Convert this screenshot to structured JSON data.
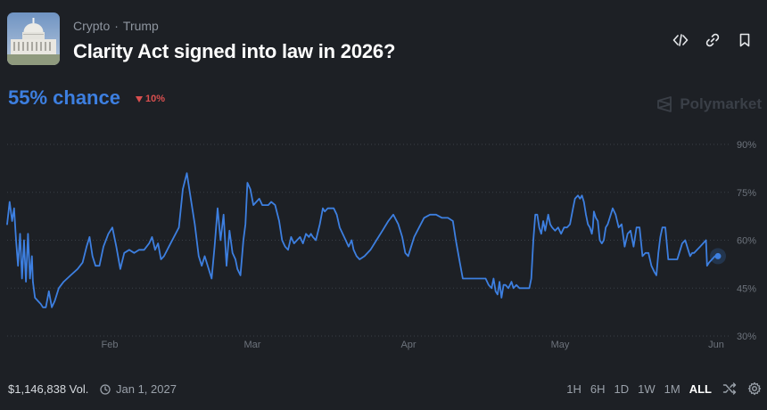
{
  "header": {
    "breadcrumbs": [
      "Crypto",
      "Trump"
    ],
    "separator": "·",
    "title": "Clarity Act signed into law in 2026?",
    "thumbnail_icon": "capitol-building-icon",
    "actions": [
      "embed-icon",
      "link-icon",
      "bookmark-icon"
    ]
  },
  "summary": {
    "chance": "55% chance",
    "delta": "10%",
    "delta_direction": "down",
    "watermark": "Polymarket"
  },
  "colors": {
    "background": "#1d2025",
    "line": "#3d7fe0",
    "delta": "#d94f4f",
    "grid": "#3a3f47",
    "axis_text": "#6d737c"
  },
  "footer": {
    "volume": "$1,146,838 Vol.",
    "end_date": "Jan 1, 2027",
    "ranges": [
      "1H",
      "6H",
      "1D",
      "1W",
      "1M",
      "ALL"
    ],
    "active_range": "ALL",
    "tools": [
      "shuffle-icon",
      "settings-icon"
    ]
  },
  "chart_data": {
    "type": "line",
    "x_ticks": [
      "Feb",
      "Mar",
      "Apr",
      "May",
      "Jun"
    ],
    "y_ticks": [
      "90%",
      "75%",
      "60%",
      "45%",
      "30%"
    ],
    "ylim": [
      30,
      90
    ],
    "grid": true,
    "series": [
      {
        "values": [
          [
            0,
            65
          ],
          [
            0.25,
            72
          ],
          [
            0.5,
            66
          ],
          [
            0.7,
            70
          ],
          [
            0.9,
            60
          ],
          [
            1.1,
            52
          ],
          [
            1.3,
            62
          ],
          [
            1.5,
            48
          ],
          [
            1.7,
            60
          ],
          [
            1.9,
            47
          ],
          [
            2.1,
            62
          ],
          [
            2.3,
            48
          ],
          [
            2.5,
            55
          ],
          [
            2.6,
            47
          ],
          [
            2.8,
            42
          ],
          [
            3.1,
            41
          ],
          [
            3.4,
            40
          ],
          [
            3.6,
            39
          ],
          [
            3.9,
            39
          ],
          [
            4.2,
            44
          ],
          [
            4.5,
            39
          ],
          [
            4.8,
            41
          ],
          [
            5.2,
            45
          ],
          [
            5.7,
            47
          ],
          [
            6.4,
            49
          ],
          [
            7.1,
            51
          ],
          [
            7.6,
            53
          ],
          [
            8.0,
            58
          ],
          [
            8.3,
            61
          ],
          [
            8.6,
            55
          ],
          [
            8.9,
            52
          ],
          [
            9.3,
            52
          ],
          [
            9.7,
            58
          ],
          [
            10.2,
            62
          ],
          [
            10.6,
            64
          ],
          [
            11.0,
            58
          ],
          [
            11.4,
            51
          ],
          [
            11.8,
            56
          ],
          [
            12.3,
            57
          ],
          [
            12.8,
            56
          ],
          [
            13.3,
            57
          ],
          [
            13.8,
            57
          ],
          [
            14.3,
            59
          ],
          [
            14.6,
            61
          ],
          [
            14.9,
            57
          ],
          [
            15.2,
            59
          ],
          [
            15.5,
            54
          ],
          [
            15.8,
            55
          ],
          [
            16.3,
            58
          ],
          [
            16.8,
            61
          ],
          [
            17.3,
            64
          ],
          [
            17.7,
            76
          ],
          [
            18.1,
            81
          ],
          [
            18.5,
            73
          ],
          [
            18.9,
            65
          ],
          [
            19.3,
            55
          ],
          [
            19.6,
            52
          ],
          [
            19.9,
            55
          ],
          [
            20.3,
            51
          ],
          [
            20.6,
            48
          ],
          [
            20.9,
            58
          ],
          [
            21.2,
            70
          ],
          [
            21.5,
            60
          ],
          [
            21.8,
            68
          ],
          [
            22.1,
            52
          ],
          [
            22.4,
            63
          ],
          [
            22.7,
            56
          ],
          [
            23.0,
            54
          ],
          [
            23.2,
            51
          ],
          [
            23.5,
            49
          ],
          [
            23.8,
            60
          ],
          [
            24.0,
            65
          ],
          [
            24.2,
            78
          ],
          [
            24.5,
            76
          ],
          [
            24.8,
            71
          ],
          [
            25.1,
            72
          ],
          [
            25.4,
            73
          ],
          [
            25.7,
            71
          ],
          [
            26.0,
            71
          ],
          [
            26.3,
            71
          ],
          [
            26.6,
            72
          ],
          [
            27.0,
            71
          ],
          [
            27.4,
            66
          ],
          [
            27.7,
            60
          ],
          [
            28.0,
            58
          ],
          [
            28.3,
            57
          ],
          [
            28.6,
            61
          ],
          [
            28.9,
            59
          ],
          [
            29.2,
            60
          ],
          [
            29.5,
            61
          ],
          [
            29.8,
            59
          ],
          [
            30.1,
            62
          ],
          [
            30.4,
            61
          ],
          [
            30.6,
            62
          ],
          [
            30.8,
            61
          ],
          [
            31.1,
            60
          ],
          [
            31.5,
            65
          ],
          [
            31.8,
            70
          ],
          [
            32.0,
            69
          ],
          [
            32.3,
            70
          ],
          [
            32.6,
            70
          ],
          [
            32.9,
            70
          ],
          [
            33.2,
            68
          ],
          [
            33.5,
            64
          ],
          [
            33.8,
            62
          ],
          [
            34.1,
            60
          ],
          [
            34.4,
            58
          ],
          [
            34.7,
            60
          ],
          [
            34.9,
            57
          ],
          [
            35.2,
            55
          ],
          [
            35.5,
            54
          ],
          [
            36.0,
            55
          ],
          [
            36.6,
            57
          ],
          [
            37.2,
            60
          ],
          [
            37.8,
            63
          ],
          [
            38.4,
            66
          ],
          [
            38.9,
            68
          ],
          [
            39.4,
            65
          ],
          [
            39.8,
            61
          ],
          [
            40.1,
            56
          ],
          [
            40.4,
            55
          ],
          [
            40.7,
            58
          ],
          [
            41.0,
            61
          ],
          [
            41.5,
            64
          ],
          [
            42.0,
            67
          ],
          [
            42.6,
            68
          ],
          [
            43.2,
            68
          ],
          [
            43.8,
            67
          ],
          [
            44.4,
            67
          ],
          [
            44.9,
            66
          ],
          [
            45.2,
            60
          ],
          [
            45.6,
            53
          ],
          [
            45.9,
            48
          ],
          [
            46.3,
            48
          ],
          [
            46.8,
            48
          ],
          [
            47.3,
            48
          ],
          [
            47.8,
            48
          ],
          [
            48.2,
            48
          ],
          [
            48.5,
            46
          ],
          [
            48.8,
            45
          ],
          [
            49.0,
            48
          ],
          [
            49.2,
            44
          ],
          [
            49.4,
            43
          ],
          [
            49.6,
            47
          ],
          [
            49.8,
            42
          ],
          [
            50.0,
            46
          ],
          [
            50.2,
            46
          ],
          [
            50.5,
            45
          ],
          [
            50.8,
            47
          ],
          [
            51.0,
            45
          ],
          [
            51.3,
            46
          ],
          [
            51.6,
            45
          ],
          [
            52.0,
            45
          ],
          [
            52.4,
            45
          ],
          [
            52.6,
            45
          ],
          [
            52.8,
            48
          ],
          [
            53.0,
            60
          ],
          [
            53.2,
            68
          ],
          [
            53.4,
            68
          ],
          [
            53.6,
            64
          ],
          [
            53.8,
            62
          ],
          [
            54.0,
            66
          ],
          [
            54.2,
            63
          ],
          [
            54.5,
            68
          ],
          [
            54.7,
            65
          ],
          [
            54.9,
            64
          ],
          [
            55.2,
            63
          ],
          [
            55.5,
            64
          ],
          [
            55.8,
            62
          ],
          [
            56.1,
            64
          ],
          [
            56.4,
            64
          ],
          [
            56.7,
            65
          ],
          [
            57.0,
            70
          ],
          [
            57.2,
            73
          ],
          [
            57.5,
            74
          ],
          [
            57.7,
            73
          ],
          [
            57.9,
            74
          ],
          [
            58.1,
            72
          ],
          [
            58.3,
            68
          ],
          [
            58.5,
            65
          ],
          [
            58.7,
            64
          ],
          [
            58.9,
            62
          ],
          [
            59.0,
            64
          ],
          [
            59.1,
            69
          ],
          [
            59.3,
            67
          ],
          [
            59.5,
            66
          ],
          [
            59.7,
            60
          ],
          [
            59.9,
            59
          ],
          [
            60.1,
            60
          ],
          [
            60.3,
            64
          ],
          [
            60.5,
            65
          ],
          [
            60.7,
            67
          ],
          [
            61.0,
            70
          ],
          [
            61.3,
            68
          ],
          [
            61.6,
            64
          ],
          [
            61.9,
            65
          ],
          [
            62.2,
            58
          ],
          [
            62.5,
            62
          ],
          [
            62.8,
            63
          ],
          [
            63.1,
            58
          ],
          [
            63.4,
            64
          ],
          [
            63.7,
            64
          ],
          [
            64.0,
            55
          ],
          [
            64.3,
            56
          ],
          [
            64.6,
            56
          ],
          [
            64.9,
            52
          ],
          [
            65.2,
            50
          ],
          [
            65.4,
            49
          ],
          [
            65.6,
            56
          ],
          [
            65.8,
            61
          ],
          [
            66.0,
            64
          ],
          [
            66.3,
            64
          ],
          [
            66.6,
            54
          ],
          [
            66.9,
            54
          ],
          [
            67.2,
            54
          ],
          [
            67.5,
            54
          ],
          [
            67.8,
            57
          ],
          [
            68.0,
            59
          ],
          [
            68.3,
            60
          ],
          [
            68.6,
            57
          ],
          [
            68.8,
            55
          ],
          [
            69.0,
            56
          ],
          [
            69.2,
            56
          ],
          [
            69.5,
            57
          ],
          [
            69.8,
            58
          ],
          [
            70.1,
            59
          ],
          [
            70.4,
            60
          ],
          [
            70.5,
            52
          ],
          [
            70.7,
            53
          ],
          [
            71.0,
            54
          ],
          [
            71.3,
            55
          ],
          [
            71.6,
            55
          ]
        ]
      }
    ]
  }
}
